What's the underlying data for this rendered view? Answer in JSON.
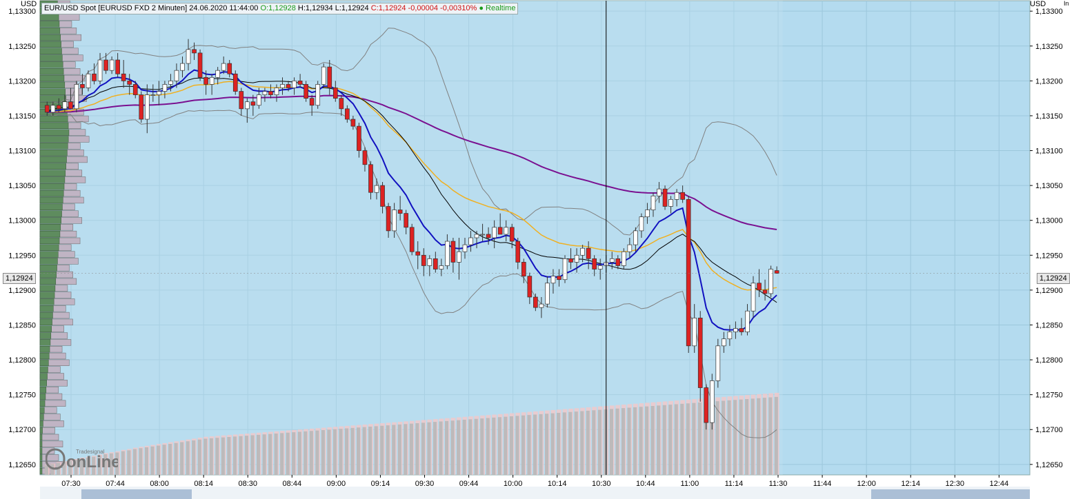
{
  "header": {
    "instrument": "EUR/USD Spot [EURUSD FXD 2 Minuten] 24.06.2020 11:44:00",
    "open": "O:1,12928",
    "high": "H:1,12934",
    "low": "L:1,12924",
    "close": "C:1,12924 -0,00004 -0,00310%",
    "realtime": "Realtime"
  },
  "units": {
    "left": "USD",
    "right": "USD",
    "corner": "In"
  },
  "last_price": "1,12924",
  "logo": {
    "brand": "Tradesignal",
    "text": "onLine"
  },
  "colors": {
    "background": "#b4dbef",
    "up": "#ffffff",
    "down": "#dd2222",
    "ema_fast": "#1111c0",
    "sma": "#000000",
    "ema_mid": "#f0b020",
    "ema_slow": "#7a1090",
    "bollinger": "#808080",
    "volume": "#b8b8b8",
    "volume_avg": "#f4c8c8",
    "profile_green": "#5e8c5e",
    "profile_gray": "#c0b4c4"
  },
  "chart_data": {
    "type": "candlestick",
    "title": "EUR/USD Spot 2 Minuten",
    "ylim": [
      1.12635,
      1.13315
    ],
    "y_ticks": [
      "1,13300",
      "1,13250",
      "1,13200",
      "1,13150",
      "1,13100",
      "1,13050",
      "1,13000",
      "1,12950",
      "1,12900",
      "1,12850",
      "1,12800",
      "1,12750",
      "1,12700",
      "1,12650"
    ],
    "y_tick_values": [
      1.133,
      1.1325,
      1.132,
      1.1315,
      1.131,
      1.1305,
      1.13,
      1.1295,
      1.129,
      1.1285,
      1.128,
      1.1275,
      1.127,
      1.1265
    ],
    "x_ticks": [
      "07:30",
      "07:44",
      "08:00",
      "08:14",
      "08:30",
      "08:44",
      "09:00",
      "09:14",
      "09:30",
      "09:44",
      "10:00",
      "10:14",
      "10:30",
      "10:44",
      "11:00",
      "11:14",
      "11:30",
      "11:44",
      "12:00",
      "12:14",
      "12:30",
      "12:44"
    ],
    "bar_count": 160,
    "crosshair_bar": 95,
    "ohlc": [
      [
        1.13165,
        1.1317,
        1.1315,
        1.13155
      ],
      [
        1.13155,
        1.1317,
        1.1315,
        1.13165
      ],
      [
        1.13165,
        1.13175,
        1.13155,
        1.1316
      ],
      [
        1.1316,
        1.1318,
        1.13155,
        1.1317
      ],
      [
        1.1317,
        1.1319,
        1.1316,
        1.1316
      ],
      [
        1.1316,
        1.132,
        1.13155,
        1.13195
      ],
      [
        1.13195,
        1.1321,
        1.1318,
        1.1319
      ],
      [
        1.1319,
        1.13215,
        1.13185,
        1.1321
      ],
      [
        1.1321,
        1.13225,
        1.13195,
        1.132
      ],
      [
        1.132,
        1.1324,
        1.13195,
        1.1323
      ],
      [
        1.1323,
        1.1324,
        1.1321,
        1.13215
      ],
      [
        1.13215,
        1.13235,
        1.1321,
        1.1323
      ],
      [
        1.1323,
        1.1324,
        1.13205,
        1.1321
      ],
      [
        1.1321,
        1.1323,
        1.1319,
        1.132
      ],
      [
        1.132,
        1.1321,
        1.1318,
        1.13195
      ],
      [
        1.13195,
        1.132,
        1.13175,
        1.1318
      ],
      [
        1.1318,
        1.13185,
        1.1314,
        1.13145
      ],
      [
        1.13145,
        1.13195,
        1.13125,
        1.1318
      ],
      [
        1.1318,
        1.13195,
        1.1317,
        1.1318
      ],
      [
        1.1318,
        1.132,
        1.13165,
        1.13185
      ],
      [
        1.13185,
        1.132,
        1.13175,
        1.13195
      ],
      [
        1.13195,
        1.1321,
        1.13185,
        1.132
      ],
      [
        1.132,
        1.13225,
        1.1319,
        1.13215
      ],
      [
        1.13215,
        1.13235,
        1.13205,
        1.13225
      ],
      [
        1.13225,
        1.1326,
        1.13215,
        1.13245
      ],
      [
        1.13245,
        1.13255,
        1.1323,
        1.1324
      ],
      [
        1.1324,
        1.13245,
        1.132,
        1.13205
      ],
      [
        1.13205,
        1.13215,
        1.1318,
        1.13195
      ],
      [
        1.13195,
        1.1321,
        1.1318,
        1.13205
      ],
      [
        1.13205,
        1.1322,
        1.13195,
        1.13215
      ],
      [
        1.13215,
        1.13235,
        1.1321,
        1.13225
      ],
      [
        1.13225,
        1.1323,
        1.13205,
        1.1321
      ],
      [
        1.1321,
        1.13215,
        1.1318,
        1.13185
      ],
      [
        1.13185,
        1.1319,
        1.1315,
        1.1316
      ],
      [
        1.1316,
        1.13175,
        1.1314,
        1.1317
      ],
      [
        1.1317,
        1.1318,
        1.1315,
        1.13165
      ],
      [
        1.13165,
        1.1319,
        1.1316,
        1.1318
      ],
      [
        1.1318,
        1.1319,
        1.1317,
        1.13185
      ],
      [
        1.13185,
        1.13195,
        1.13175,
        1.1318
      ],
      [
        1.1318,
        1.13195,
        1.1317,
        1.1319
      ],
      [
        1.1319,
        1.13205,
        1.1318,
        1.13195
      ],
      [
        1.13195,
        1.132,
        1.13185,
        1.1319
      ],
      [
        1.1319,
        1.13205,
        1.1318,
        1.132
      ],
      [
        1.132,
        1.1321,
        1.1319,
        1.13195
      ],
      [
        1.13195,
        1.132,
        1.1317,
        1.13175
      ],
      [
        1.13175,
        1.1318,
        1.1315,
        1.13165
      ],
      [
        1.13165,
        1.132,
        1.1316,
        1.13195
      ],
      [
        1.13195,
        1.13225,
        1.1319,
        1.1322
      ],
      [
        1.1322,
        1.1323,
        1.1318,
        1.1319
      ],
      [
        1.1319,
        1.132,
        1.1317,
        1.13175
      ],
      [
        1.13175,
        1.1318,
        1.1315,
        1.1316
      ],
      [
        1.1316,
        1.13165,
        1.1314,
        1.13145
      ],
      [
        1.13145,
        1.1315,
        1.1313,
        1.13135
      ],
      [
        1.13135,
        1.1314,
        1.1309,
        1.131
      ],
      [
        1.131,
        1.13105,
        1.1307,
        1.1308
      ],
      [
        1.1308,
        1.13085,
        1.1303,
        1.1304
      ],
      [
        1.1304,
        1.1306,
        1.1303,
        1.1305
      ],
      [
        1.1305,
        1.13055,
        1.1301,
        1.1302
      ],
      [
        1.1302,
        1.13025,
        1.12975,
        1.12985
      ],
      [
        1.12985,
        1.13025,
        1.12975,
        1.13015
      ],
      [
        1.13015,
        1.13035,
        1.13,
        1.1301
      ],
      [
        1.1301,
        1.13015,
        1.1298,
        1.1299
      ],
      [
        1.1299,
        1.12995,
        1.1295,
        1.12955
      ],
      [
        1.12955,
        1.1297,
        1.1293,
        1.1295
      ],
      [
        1.1295,
        1.1296,
        1.1292,
        1.12935
      ],
      [
        1.12935,
        1.1295,
        1.1292,
        1.12945
      ],
      [
        1.12945,
        1.12955,
        1.12925,
        1.1293
      ],
      [
        1.1293,
        1.12945,
        1.1292,
        1.12935
      ],
      [
        1.12935,
        1.1298,
        1.1293,
        1.1297
      ],
      [
        1.1297,
        1.12975,
        1.12925,
        1.1294
      ],
      [
        1.1294,
        1.12975,
        1.12915,
        1.12955
      ],
      [
        1.12955,
        1.12975,
        1.12945,
        1.12965
      ],
      [
        1.12965,
        1.12985,
        1.12955,
        1.12975
      ],
      [
        1.12975,
        1.12985,
        1.1296,
        1.1298
      ],
      [
        1.1298,
        1.12995,
        1.1297,
        1.1298
      ],
      [
        1.1298,
        1.1299,
        1.12965,
        1.12975
      ],
      [
        1.12975,
        1.13,
        1.1296,
        1.1299
      ],
      [
        1.1299,
        1.1301,
        1.1298,
        1.1298
      ],
      [
        1.1298,
        1.13,
        1.1297,
        1.1299
      ],
      [
        1.1299,
        1.12995,
        1.1296,
        1.1297
      ],
      [
        1.1297,
        1.12975,
        1.1293,
        1.1294
      ],
      [
        1.1294,
        1.12945,
        1.1291,
        1.1292
      ],
      [
        1.1292,
        1.12925,
        1.1288,
        1.1289
      ],
      [
        1.1289,
        1.12895,
        1.1287,
        1.12875
      ],
      [
        1.12875,
        1.1289,
        1.1286,
        1.1288
      ],
      [
        1.1288,
        1.1292,
        1.12875,
        1.1291
      ],
      [
        1.1291,
        1.1293,
        1.12895,
        1.1292
      ],
      [
        1.1292,
        1.1293,
        1.12905,
        1.12915
      ],
      [
        1.12915,
        1.1295,
        1.1291,
        1.12945
      ],
      [
        1.12945,
        1.1296,
        1.1293,
        1.1294
      ],
      [
        1.1294,
        1.1296,
        1.12925,
        1.1295
      ],
      [
        1.1295,
        1.12965,
        1.1294,
        1.1296
      ],
      [
        1.1296,
        1.1297,
        1.1293,
        1.12945
      ],
      [
        1.12945,
        1.1295,
        1.1292,
        1.1293
      ],
      [
        1.1293,
        1.12945,
        1.12915,
        1.12935
      ],
      [
        1.12935,
        1.1295,
        1.12925,
        1.1294
      ],
      [
        1.1294,
        1.12955,
        1.1293,
        1.12945
      ],
      [
        1.12945,
        1.1295,
        1.1293,
        1.12935
      ],
      [
        1.12935,
        1.1296,
        1.1293,
        1.12955
      ],
      [
        1.12955,
        1.12975,
        1.12945,
        1.12965
      ],
      [
        1.12965,
        1.1299,
        1.12955,
        1.12985
      ],
      [
        1.12985,
        1.1301,
        1.12975,
        1.13005
      ],
      [
        1.13005,
        1.13025,
        1.12995,
        1.13015
      ],
      [
        1.13015,
        1.1304,
        1.13005,
        1.13035
      ],
      [
        1.13035,
        1.13055,
        1.13025,
        1.13045
      ],
      [
        1.13045,
        1.1305,
        1.13015,
        1.1302
      ],
      [
        1.1302,
        1.13035,
        1.1301,
        1.1303
      ],
      [
        1.1303,
        1.13045,
        1.1302,
        1.1304
      ],
      [
        1.1304,
        1.1305,
        1.13025,
        1.1303
      ],
      [
        1.1303,
        1.13035,
        1.1281,
        1.1282
      ],
      [
        1.1282,
        1.1288,
        1.1281,
        1.1286
      ],
      [
        1.1286,
        1.1287,
        1.1274,
        1.1276
      ],
      [
        1.1276,
        1.12765,
        1.127,
        1.1271
      ],
      [
        1.1271,
        1.1278,
        1.127,
        1.1277
      ],
      [
        1.1277,
        1.1283,
        1.1276,
        1.1282
      ],
      [
        1.1282,
        1.1284,
        1.1281,
        1.1283
      ],
      [
        1.1283,
        1.1285,
        1.1282,
        1.1284
      ],
      [
        1.1284,
        1.12855,
        1.1283,
        1.12845
      ],
      [
        1.12845,
        1.1286,
        1.12835,
        1.1284
      ],
      [
        1.1284,
        1.1288,
        1.12835,
        1.1287
      ],
      [
        1.1287,
        1.1292,
        1.1286,
        1.1291
      ],
      [
        1.1291,
        1.1293,
        1.1289,
        1.129
      ],
      [
        1.129,
        1.12915,
        1.12885,
        1.12895
      ],
      [
        1.12895,
        1.12935,
        1.1289,
        1.1293
      ],
      [
        1.12928,
        1.12934,
        1.12924,
        1.12924
      ]
    ],
    "volume": [
      22,
      25,
      28,
      30,
      33,
      35,
      38,
      40,
      42,
      45,
      48,
      50,
      52,
      55,
      57,
      60,
      62,
      64,
      66,
      68,
      70,
      72,
      74,
      76,
      78,
      80,
      82,
      84,
      85,
      86,
      87,
      88,
      89,
      90,
      91,
      92,
      93,
      94,
      95,
      96,
      97,
      98,
      99,
      100,
      101,
      102,
      103,
      104,
      105,
      106,
      107,
      108,
      109,
      110,
      111,
      112,
      113,
      114,
      115,
      116,
      117,
      118,
      119,
      120,
      121,
      122,
      123,
      124,
      125,
      126,
      127,
      128,
      129,
      130,
      131,
      132,
      133,
      134,
      135,
      136,
      137,
      138,
      139,
      140,
      141,
      142,
      143,
      144,
      145,
      146,
      147,
      148,
      149,
      150,
      151,
      152,
      153,
      154,
      155,
      156,
      157,
      158,
      159,
      160,
      161,
      162,
      163,
      164,
      165,
      166,
      167,
      168,
      169,
      170,
      171,
      172,
      173,
      174,
      175,
      176,
      177,
      178,
      179,
      180,
      181
    ]
  }
}
